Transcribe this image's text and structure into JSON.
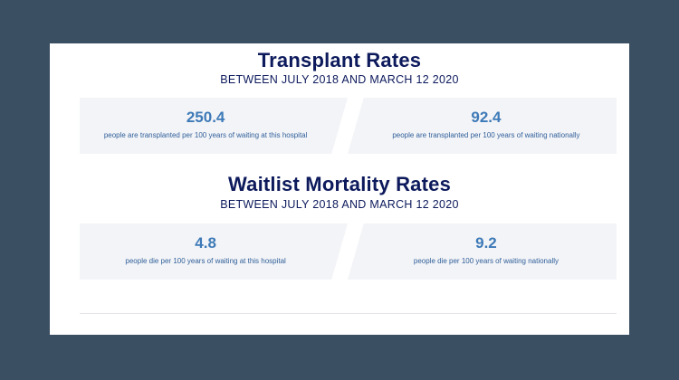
{
  "transplant": {
    "title": "Transplant Rates",
    "subtitle": "BETWEEN JULY 2018 AND MARCH 12 2020",
    "hospital": {
      "value": "250.4",
      "description": "people are transplanted per 100 years of waiting at this hospital"
    },
    "national": {
      "value": "92.4",
      "description": "people are transplanted per 100 years of waiting nationally"
    }
  },
  "mortality": {
    "title": "Waitlist Mortality Rates",
    "subtitle": "BETWEEN JULY 2018 AND MARCH 12 2020",
    "hospital": {
      "value": "4.8",
      "description": "people die per 100 years of waiting at this hospital"
    },
    "national": {
      "value": "9.2",
      "description": "people die per 100 years of waiting nationally"
    }
  }
}
